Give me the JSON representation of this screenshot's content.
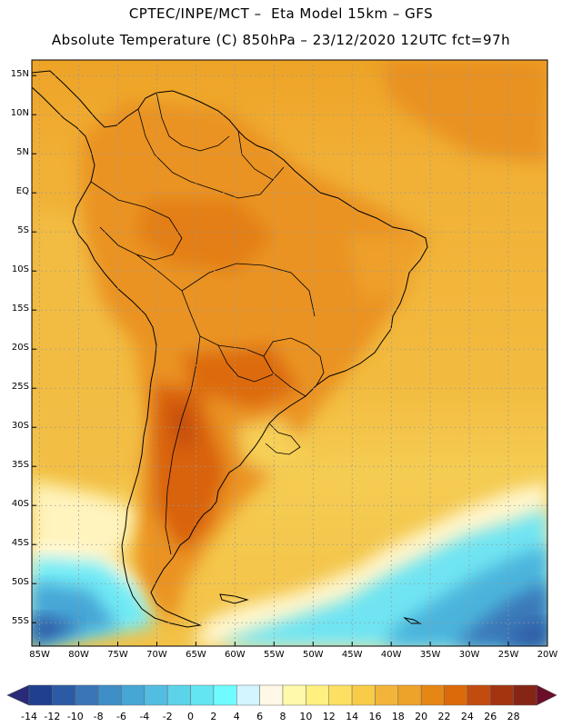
{
  "header": {
    "line1": "CPTEC/INPE/MCT –  Eta Model 15km – GFS",
    "line2": "Absolute Temperature (C) 850hPa – 23/12/2020 12UTC fct=97h"
  },
  "map": {
    "region": "South America",
    "lat_range": [
      -58,
      17
    ],
    "lon_range": [
      -86,
      -20
    ],
    "lat_labels": [
      "15N",
      "10N",
      "5N",
      "EQ",
      "5S",
      "10S",
      "15S",
      "20S",
      "25S",
      "30S",
      "35S",
      "40S",
      "45S",
      "50S",
      "55S"
    ],
    "lat_values": [
      15,
      10,
      5,
      0,
      -5,
      -10,
      -15,
      -20,
      -25,
      -30,
      -35,
      -40,
      -45,
      -50,
      -55
    ],
    "lon_labels": [
      "85W",
      "80W",
      "75W",
      "70W",
      "65W",
      "60W",
      "55W",
      "50W",
      "45W",
      "40W",
      "35W",
      "30W",
      "25W",
      "20W"
    ],
    "lon_values": [
      -85,
      -80,
      -75,
      -70,
      -65,
      -60,
      -55,
      -50,
      -45,
      -40,
      -35,
      -30,
      -25,
      -20
    ]
  },
  "colorbar": {
    "labels": [
      "-14",
      "-12",
      "-10",
      "-8",
      "-6",
      "-4",
      "-2",
      "0",
      "2",
      "4",
      "6",
      "8",
      "10",
      "12",
      "14",
      "16",
      "18",
      "20",
      "22",
      "24",
      "26",
      "28"
    ],
    "colors": [
      "#1f3f8f",
      "#2d5aa5",
      "#3a75b8",
      "#3e8ec8",
      "#46a6d6",
      "#53bde1",
      "#5dd3ea",
      "#63e6f2",
      "#6ffbff",
      "#d2f5ff",
      "#fff8e6",
      "#fffaaa",
      "#fff080",
      "#fde062",
      "#f8cc48",
      "#f3b43a",
      "#eda22a",
      "#e68614",
      "#dd6a0a",
      "#c24c10",
      "#a23410",
      "#852516"
    ],
    "under_color": "#2a2a7a",
    "over_color": "#6a0e2a"
  }
}
